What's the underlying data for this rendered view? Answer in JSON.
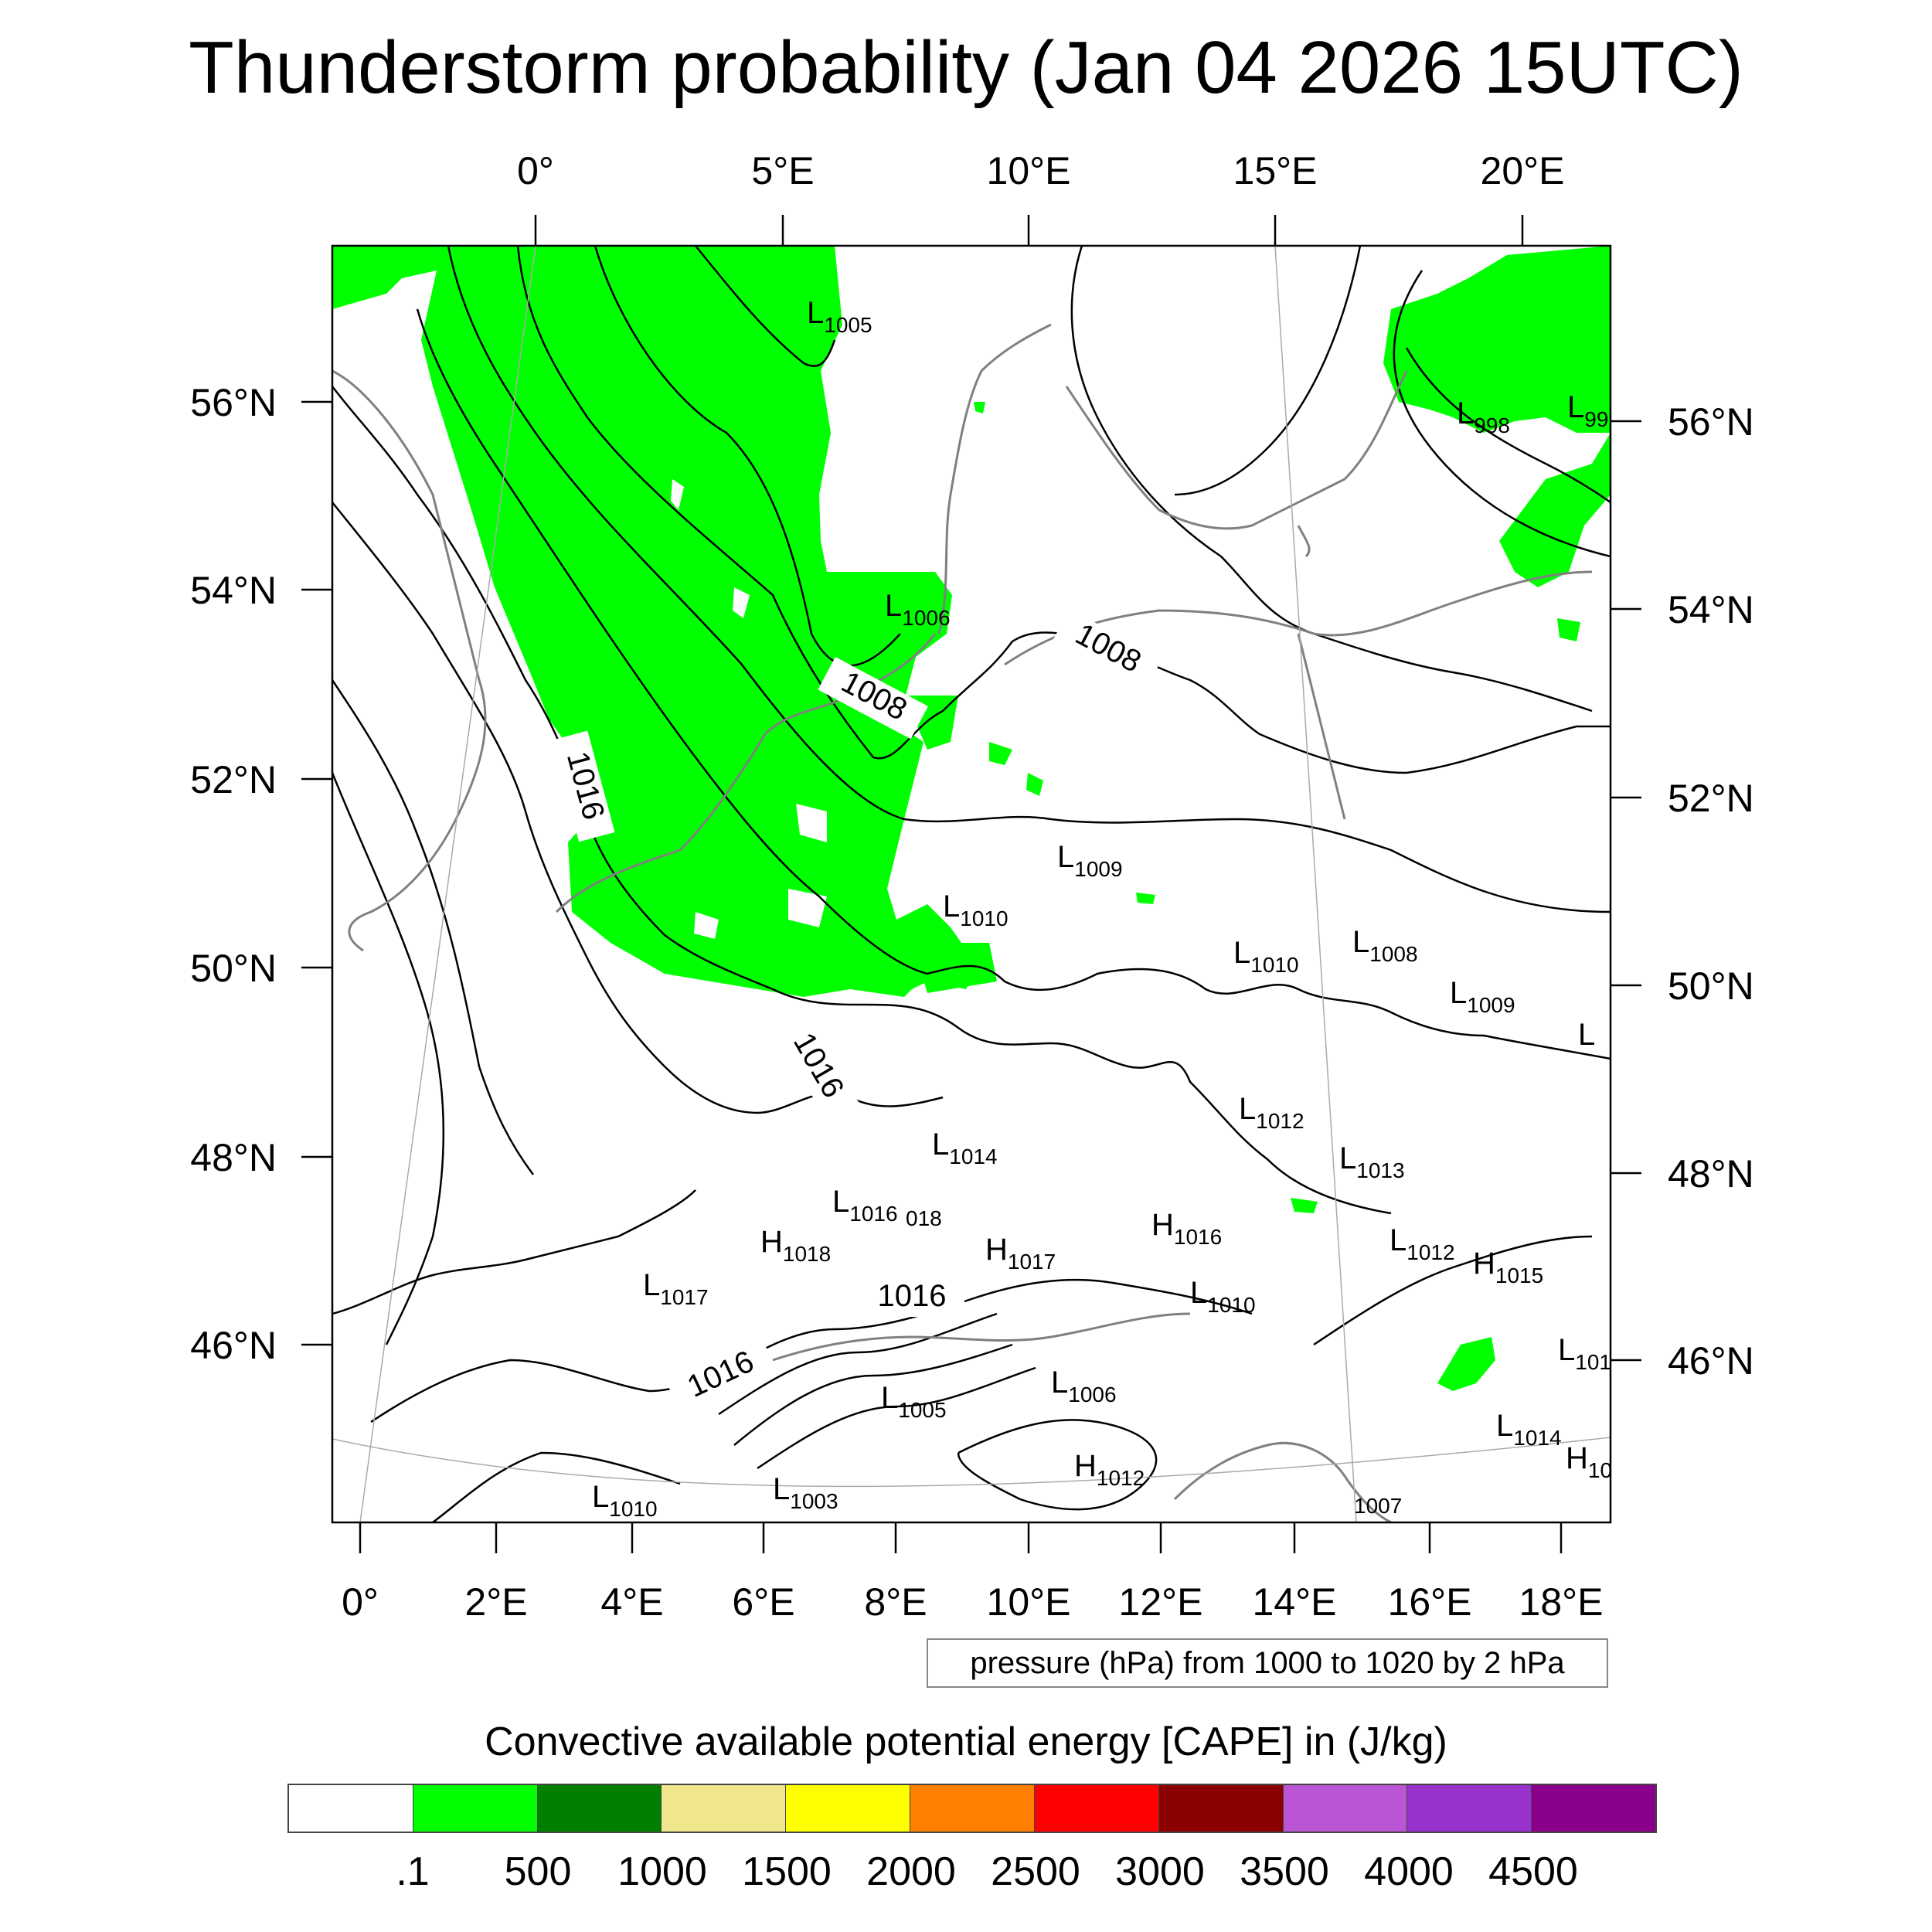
{
  "title": "Thunderstorm probability (Jan 04 2026 15UTC)",
  "top_lon_labels": [
    "0°",
    "5°E",
    "10°E",
    "15°E",
    "20°E"
  ],
  "bottom_lon_labels": [
    "0°",
    "2°E",
    "4°E",
    "6°E",
    "8°E",
    "10°E",
    "12°E",
    "14°E",
    "16°E",
    "18°E"
  ],
  "left_lat_labels": [
    "56°N",
    "54°N",
    "52°N",
    "50°N",
    "48°N",
    "46°N"
  ],
  "right_lat_labels": [
    "56°N",
    "54°N",
    "52°N",
    "50°N",
    "48°N",
    "46°N"
  ],
  "pressure_centers": [
    {
      "type": "L",
      "value": "1005"
    },
    {
      "type": "L",
      "value": "998"
    },
    {
      "type": "L",
      "value": "99"
    },
    {
      "type": "L",
      "value": "1006"
    },
    {
      "type": "L",
      "value": "1009"
    },
    {
      "type": "L",
      "value": "1010"
    },
    {
      "type": "L",
      "value": "1010"
    },
    {
      "type": "L",
      "value": "1008"
    },
    {
      "type": "L",
      "value": "1009"
    },
    {
      "type": "L",
      "value": ""
    },
    {
      "type": "L",
      "value": "1012"
    },
    {
      "type": "L",
      "value": "1013"
    },
    {
      "type": "L",
      "value": "1014"
    },
    {
      "type": "L",
      "value": "1016"
    },
    {
      "type": "",
      "value": "018"
    },
    {
      "type": "H",
      "value": "1018"
    },
    {
      "type": "H",
      "value": "1016"
    },
    {
      "type": "H",
      "value": "1017"
    },
    {
      "type": "L",
      "value": "1017"
    },
    {
      "type": "L",
      "value": "1012"
    },
    {
      "type": "H",
      "value": "1015"
    },
    {
      "type": "L",
      "value": "1010"
    },
    {
      "type": "L",
      "value": "101"
    },
    {
      "type": "L",
      "value": "1006"
    },
    {
      "type": "L",
      "value": "1005"
    },
    {
      "type": "L",
      "value": "1014"
    },
    {
      "type": "H",
      "value": "10"
    },
    {
      "type": "H",
      "value": "1012"
    },
    {
      "type": "L",
      "value": "1010"
    },
    {
      "type": "L",
      "value": "1003"
    },
    {
      "type": "",
      "value": "1007"
    }
  ],
  "contour_labels": [
    "1008",
    "1008",
    "1016",
    "1016",
    "1016",
    "1016"
  ],
  "info_text": "pressure (hPa) from 1000 to 1020 by 2 hPa",
  "colorbar": {
    "title": "Convective available potential energy [CAPE] in (J/kg)",
    "colors": [
      "#ffffff",
      "#00ff00",
      "#008000",
      "#f0e68c",
      "#ffff00",
      "#ff8000",
      "#ff0000",
      "#8b0000",
      "#ba55d3",
      "#9932cc",
      "#8b008b"
    ],
    "tick_labels": [
      ".1",
      "500",
      "1000",
      "1500",
      "2000",
      "2500",
      "3000",
      "3500",
      "4000",
      "4500"
    ]
  },
  "cape_fill_color": "#00ff00",
  "contour_color": "#000000",
  "coast_color": "#808080"
}
